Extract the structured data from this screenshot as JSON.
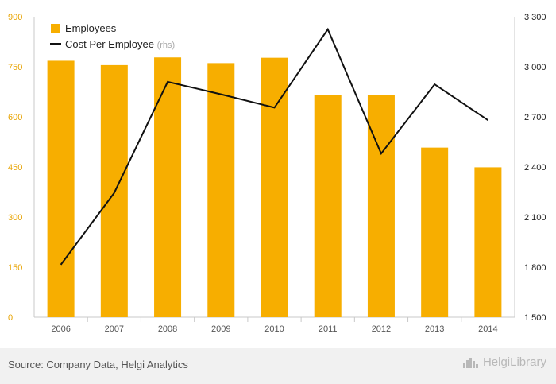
{
  "chart_data": {
    "type": "bar",
    "categories": [
      "2006",
      "2007",
      "2008",
      "2009",
      "2010",
      "2011",
      "2012",
      "2013",
      "2014"
    ],
    "series": [
      {
        "name": "Employees",
        "type": "bar",
        "axis": "left",
        "values": [
          768,
          755,
          778,
          761,
          777,
          666,
          666,
          508,
          449
        ]
      },
      {
        "name": "Cost Per Employee",
        "type": "line",
        "axis": "right",
        "values": [
          1815,
          2245,
          2910,
          2835,
          2755,
          3225,
          2480,
          2895,
          2680
        ]
      }
    ],
    "yleft": {
      "lim": [
        0,
        900
      ],
      "ticks": [
        "0",
        "150",
        "300",
        "450",
        "600",
        "750",
        "900"
      ]
    },
    "yright": {
      "lim": [
        1500,
        3300
      ],
      "ticks": [
        "1 500",
        "1 800",
        "2 100",
        "2 400",
        "2 700",
        "3 000",
        "3 300"
      ]
    },
    "legend": {
      "position": "top-left",
      "items": [
        {
          "label": "Employees",
          "suffix": ""
        },
        {
          "label": "Cost Per Employee",
          "suffix": "(rhs)"
        }
      ]
    },
    "colors": {
      "bar": "#f7ae00",
      "line": "#111111",
      "left_tick": "#e8a300",
      "right_tick": "#222222",
      "x_tick": "#555555",
      "axis": "#c8c8c8",
      "suffix": "#aaaaaa"
    }
  },
  "footer": {
    "source": "Source: Company Data, Helgi Analytics",
    "brand": "HelgiLibrary",
    "brand_icon": "helgi-logo-icon"
  }
}
